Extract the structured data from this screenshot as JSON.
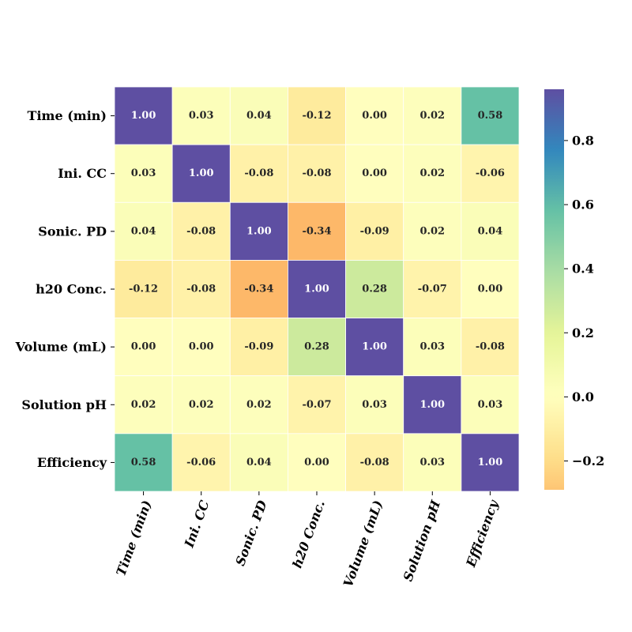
{
  "chart_data": {
    "type": "heatmap",
    "row_labels": [
      "Time (min)",
      "Ini. CC",
      "Sonic. PD",
      "h20 Conc.",
      "Volume (mL)",
      "Solution pH",
      "Efficiency"
    ],
    "col_labels": [
      "Time (min)",
      "Ini. CC",
      "Sonic. PD",
      "h20 Conc.",
      "Volume (mL)",
      "Solution pH",
      "Efficiency"
    ],
    "values": [
      [
        1.0,
        0.03,
        0.04,
        -0.12,
        0.0,
        0.02,
        0.58
      ],
      [
        0.03,
        1.0,
        -0.08,
        -0.08,
        -0.0,
        0.02,
        -0.06
      ],
      [
        0.04,
        -0.08,
        1.0,
        -0.34,
        -0.09,
        0.02,
        0.04
      ],
      [
        -0.12,
        -0.08,
        -0.34,
        1.0,
        0.28,
        -0.07,
        0.0
      ],
      [
        0.0,
        -0.0,
        -0.09,
        0.28,
        1.0,
        0.03,
        -0.08
      ],
      [
        0.02,
        0.02,
        0.02,
        -0.07,
        0.03,
        1.0,
        0.03
      ],
      [
        0.58,
        -0.06,
        0.04,
        0.0,
        -0.08,
        0.03,
        1.0
      ]
    ],
    "value_format": "0.00",
    "colorbar": {
      "ticks": [
        "−0.2",
        "0.0",
        "0.2",
        "0.4",
        "0.6",
        "0.8"
      ],
      "tick_values": [
        -0.2,
        0.0,
        0.2,
        0.4,
        0.6,
        0.8
      ],
      "range": [
        -0.29,
        0.96
      ]
    },
    "colormap": "Spectral",
    "title": "",
    "xlabel": "",
    "ylabel": ""
  }
}
